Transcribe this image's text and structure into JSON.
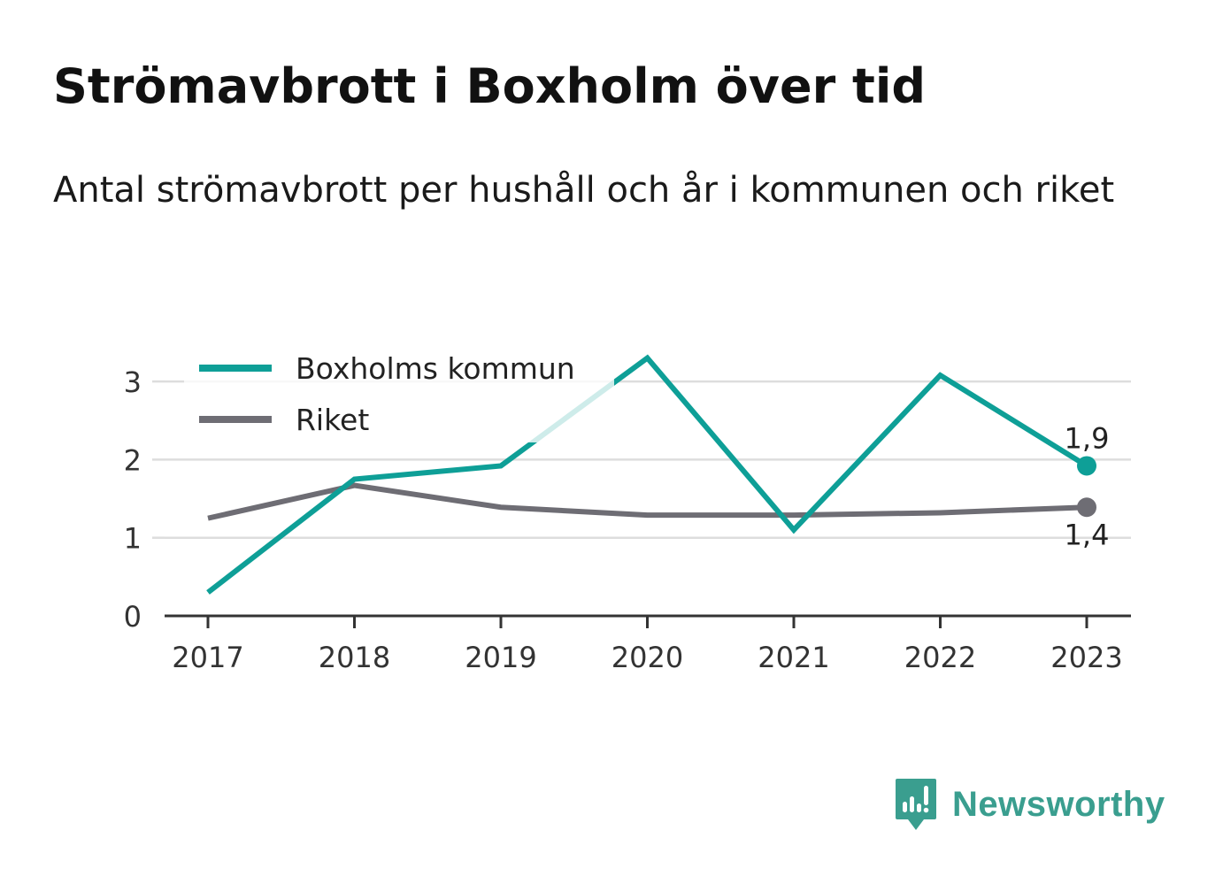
{
  "header": {
    "title": "Strömavbrott i Boxholm över tid",
    "subtitle": "Antal strömavbrott per hushåll och år i kommunen och riket"
  },
  "brand": {
    "name": "Newsworthy",
    "icon": "newsworthy-logo-icon",
    "color": "#3a9e8f"
  },
  "chart_data": {
    "type": "line",
    "x": [
      2017,
      2018,
      2019,
      2020,
      2021,
      2022,
      2023
    ],
    "x_tick_labels": [
      "2017",
      "2018",
      "2019",
      "2020",
      "2021",
      "2022",
      "2023"
    ],
    "ylim": [
      0,
      3
    ],
    "y_ticks": [
      0,
      1,
      2,
      3
    ],
    "y_tick_labels": [
      "0",
      "1",
      "2",
      "3"
    ],
    "grid": true,
    "legend_position": "top-left",
    "series": [
      {
        "name": "Boxholms kommun",
        "color": "#0e9f97",
        "values": [
          0.3,
          1.75,
          1.92,
          3.3,
          1.1,
          3.08,
          1.92
        ],
        "end_label": "1,9"
      },
      {
        "name": "Riket",
        "color": "#6e6d74",
        "values": [
          1.25,
          1.67,
          1.39,
          1.29,
          1.29,
          1.32,
          1.39
        ],
        "end_label": "1,4"
      }
    ]
  }
}
